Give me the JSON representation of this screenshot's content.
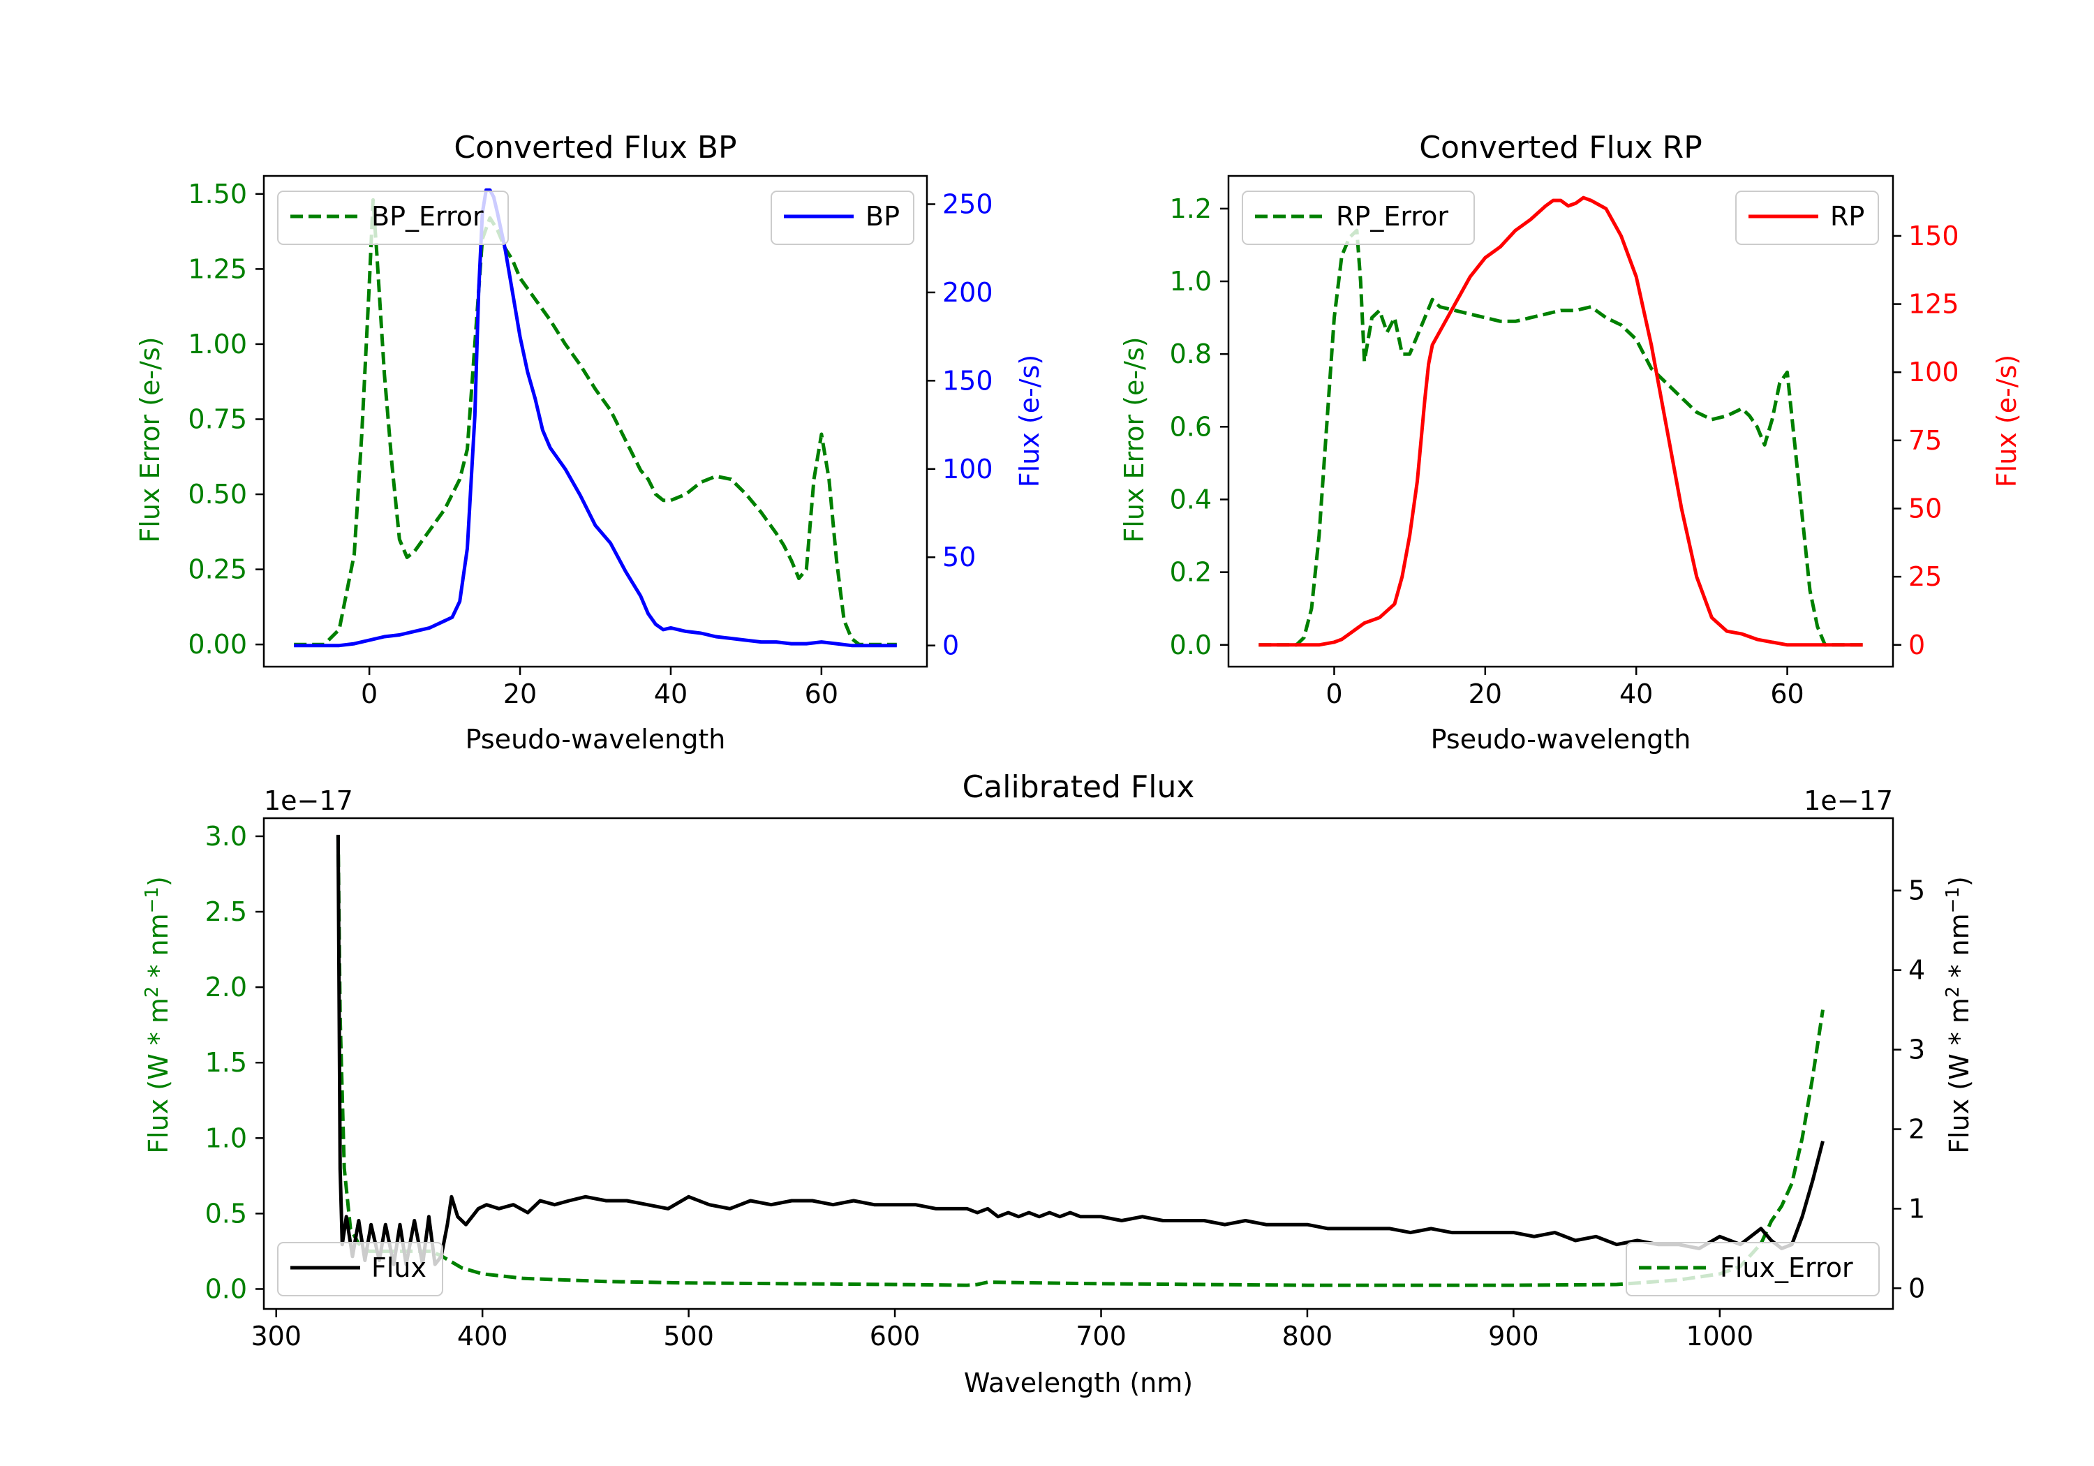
{
  "chart_data": [
    {
      "id": "bp",
      "type": "line",
      "title": "Converted Flux BP",
      "xlabel": "Pseudo-wavelength",
      "xlim": [
        -14,
        74
      ],
      "xticks": [
        0,
        20,
        40,
        60
      ],
      "left_axis": {
        "label": "Flux Error (e-/s)",
        "color": "#008000",
        "ylim": [
          -0.074,
          1.56
        ],
        "ticks": [
          0,
          0.25,
          0.5,
          0.75,
          1,
          1.25,
          1.5
        ],
        "tick_labels": [
          "0.00",
          "0.25",
          "0.50",
          "0.75",
          "1.00",
          "1.25",
          "1.50"
        ]
      },
      "right_axis": {
        "label": "Flux (e-/s)",
        "color": "#0000ff",
        "ylim": [
          -12,
          266
        ],
        "ticks": [
          0,
          50,
          100,
          150,
          200,
          250
        ],
        "tick_labels": [
          "0",
          "50",
          "100",
          "150",
          "200",
          "250"
        ]
      },
      "series": [
        {
          "name": "BP_Error",
          "axis": "left",
          "color": "#008000",
          "dash": true,
          "x": [
            -10,
            -6,
            -4,
            -2,
            -1,
            0,
            0.5,
            1,
            2,
            3,
            4,
            5,
            6,
            8,
            10,
            12,
            13,
            14,
            15,
            16,
            17,
            18,
            19,
            20,
            22,
            24,
            26,
            28,
            30,
            32,
            34,
            36,
            37,
            38,
            39,
            40,
            42,
            44,
            46,
            48,
            50,
            52,
            54,
            55,
            56,
            57,
            58,
            59,
            60,
            61,
            62,
            63,
            64,
            65,
            66,
            70
          ],
          "y": [
            0,
            0,
            0.05,
            0.3,
            0.7,
            1.2,
            1.48,
            1.3,
            0.9,
            0.6,
            0.35,
            0.29,
            0.31,
            0.38,
            0.45,
            0.55,
            0.65,
            1.0,
            1.35,
            1.42,
            1.38,
            1.32,
            1.28,
            1.22,
            1.15,
            1.08,
            1.0,
            0.93,
            0.85,
            0.78,
            0.68,
            0.58,
            0.55,
            0.5,
            0.48,
            0.48,
            0.5,
            0.54,
            0.56,
            0.55,
            0.5,
            0.44,
            0.37,
            0.33,
            0.28,
            0.22,
            0.25,
            0.55,
            0.7,
            0.55,
            0.28,
            0.08,
            0.02,
            0,
            0,
            0
          ]
        },
        {
          "name": "BP",
          "axis": "right",
          "color": "#0000ff",
          "dash": false,
          "x": [
            -10,
            -4,
            -2,
            0,
            2,
            4,
            6,
            8,
            10,
            11,
            12,
            13,
            14,
            14.5,
            15,
            15.5,
            16,
            16.5,
            17,
            18,
            19,
            20,
            21,
            22,
            23,
            24,
            26,
            28,
            30,
            32,
            34,
            36,
            37,
            38,
            39,
            40,
            42,
            44,
            46,
            48,
            50,
            52,
            54,
            56,
            58,
            60,
            62,
            64,
            66,
            70
          ],
          "y": [
            0,
            0,
            1,
            3,
            5,
            6,
            8,
            10,
            14,
            16,
            25,
            55,
            130,
            200,
            245,
            258,
            258,
            254,
            245,
            225,
            200,
            175,
            155,
            140,
            122,
            112,
            100,
            85,
            68,
            58,
            42,
            28,
            18,
            12,
            9,
            10,
            8,
            7,
            5,
            4,
            3,
            2,
            2,
            1,
            1,
            2,
            1,
            0,
            0,
            0
          ]
        }
      ],
      "legend": [
        {
          "label": "BP_Error",
          "position": "upper-left"
        },
        {
          "label": "BP",
          "position": "upper-right"
        }
      ]
    },
    {
      "id": "rp",
      "type": "line",
      "title": "Converted Flux RP",
      "xlabel": "Pseudo-wavelength",
      "xlim": [
        -14,
        74
      ],
      "xticks": [
        0,
        20,
        40,
        60
      ],
      "left_axis": {
        "label": "Flux Error (e-/s)",
        "color": "#008000",
        "ylim": [
          -0.06,
          1.29
        ],
        "ticks": [
          0,
          0.2,
          0.4,
          0.6,
          0.8,
          1,
          1.2
        ],
        "tick_labels": [
          "0.0",
          "0.2",
          "0.4",
          "0.6",
          "0.8",
          "1.0",
          "1.2"
        ]
      },
      "right_axis": {
        "label": "Flux (e-/s)",
        "color": "#ff0000",
        "ylim": [
          -8,
          172
        ],
        "ticks": [
          0,
          25,
          50,
          75,
          100,
          125,
          150
        ],
        "tick_labels": [
          "0",
          "25",
          "50",
          "75",
          "100",
          "125",
          "150"
        ]
      },
      "series": [
        {
          "name": "RP_Error",
          "axis": "left",
          "color": "#008000",
          "dash": true,
          "x": [
            -10,
            -5,
            -4,
            -3,
            -2,
            -1,
            0,
            1,
            2,
            3,
            3.5,
            4,
            5,
            6,
            7,
            8,
            9,
            10,
            12,
            13,
            14,
            16,
            18,
            20,
            22,
            24,
            26,
            28,
            30,
            32,
            34,
            36,
            38,
            40,
            42,
            44,
            46,
            48,
            50,
            52,
            54,
            55,
            56,
            57,
            58,
            59,
            60,
            61,
            62,
            63,
            64,
            65,
            70
          ],
          "y": [
            0,
            0,
            0.02,
            0.1,
            0.3,
            0.6,
            0.9,
            1.07,
            1.12,
            1.14,
            1.0,
            0.78,
            0.9,
            0.92,
            0.86,
            0.9,
            0.8,
            0.8,
            0.9,
            0.95,
            0.93,
            0.92,
            0.91,
            0.9,
            0.89,
            0.89,
            0.9,
            0.91,
            0.92,
            0.92,
            0.93,
            0.9,
            0.88,
            0.84,
            0.76,
            0.72,
            0.68,
            0.64,
            0.62,
            0.63,
            0.65,
            0.63,
            0.6,
            0.55,
            0.62,
            0.72,
            0.75,
            0.55,
            0.35,
            0.15,
            0.05,
            0,
            0
          ]
        },
        {
          "name": "RP",
          "axis": "right",
          "color": "#ff0000",
          "dash": false,
          "x": [
            -10,
            -4,
            -2,
            0,
            1,
            2,
            3,
            4,
            6,
            8,
            9,
            10,
            11,
            12,
            12.5,
            13,
            14,
            16,
            18,
            20,
            22,
            24,
            26,
            28,
            29,
            30,
            31,
            32,
            33,
            34,
            36,
            38,
            40,
            42,
            44,
            46,
            48,
            50,
            52,
            54,
            56,
            58,
            60,
            62,
            64,
            66,
            70
          ],
          "y": [
            0,
            0,
            0,
            1,
            2,
            4,
            6,
            8,
            10,
            15,
            25,
            40,
            60,
            90,
            103,
            110,
            115,
            125,
            135,
            142,
            146,
            152,
            156,
            161,
            163,
            163,
            161,
            162,
            164,
            163,
            160,
            150,
            135,
            110,
            80,
            50,
            25,
            10,
            5,
            4,
            2,
            1,
            0,
            0,
            0,
            0,
            0
          ]
        }
      ],
      "legend": [
        {
          "label": "RP_Error",
          "position": "upper-left"
        },
        {
          "label": "RP",
          "position": "upper-right"
        }
      ]
    },
    {
      "id": "cal",
      "type": "line",
      "title": "Calibrated Flux",
      "xlabel": "Wavelength (nm)",
      "xlim": [
        294,
        1084
      ],
      "xticks": [
        300,
        400,
        500,
        600,
        700,
        800,
        900,
        1000
      ],
      "left_axis": {
        "label_base": "Flux (W * m",
        "label_sup1": "2",
        "label_mid": " * nm",
        "label_sup2": "−1",
        "label_end": ")",
        "color": "#008000",
        "offset_text": "1e−17",
        "ylim": [
          -0.132,
          3.12
        ],
        "ticks": [
          0,
          0.5,
          1,
          1.5,
          2,
          2.5,
          3
        ],
        "tick_labels": [
          "0.0",
          "0.5",
          "1.0",
          "1.5",
          "2.0",
          "2.5",
          "3.0"
        ]
      },
      "right_axis": {
        "label_base": "Flux (W * m",
        "label_sup1": "2",
        "label_mid": " * nm",
        "label_sup2": "−1",
        "label_end": ")",
        "color": "#000000",
        "offset_text": "1e−17",
        "ylim": [
          -0.26,
          5.91
        ],
        "ticks": [
          0,
          1,
          2,
          3,
          4,
          5
        ],
        "tick_labels": [
          "0",
          "1",
          "2",
          "3",
          "4",
          "5"
        ]
      },
      "series": [
        {
          "name": "Flux_Error",
          "axis": "left",
          "color": "#008000",
          "dash": true,
          "x": [
            330,
            331,
            333,
            336,
            340,
            345,
            350,
            355,
            360,
            365,
            370,
            375,
            380,
            385,
            390,
            400,
            420,
            440,
            460,
            500,
            550,
            600,
            635,
            640,
            645,
            700,
            750,
            800,
            850,
            900,
            950,
            980,
            1000,
            1010,
            1020,
            1025,
            1030,
            1035,
            1040,
            1045,
            1050
          ],
          "y": [
            3.0,
            1.8,
            0.8,
            0.4,
            0.3,
            0.25,
            0.25,
            0.25,
            0.25,
            0.25,
            0.25,
            0.25,
            0.22,
            0.18,
            0.14,
            0.1,
            0.07,
            0.06,
            0.05,
            0.04,
            0.035,
            0.03,
            0.025,
            0.03,
            0.045,
            0.035,
            0.03,
            0.025,
            0.025,
            0.025,
            0.03,
            0.06,
            0.1,
            0.15,
            0.3,
            0.45,
            0.55,
            0.7,
            1.0,
            1.4,
            1.85
          ]
        },
        {
          "name": "Flux",
          "axis": "right",
          "color": "#000000",
          "dash": false,
          "x": [
            330,
            331,
            332,
            334,
            337,
            340,
            343,
            346,
            350,
            353,
            357,
            360,
            363,
            367,
            371,
            374,
            377,
            380,
            383,
            385,
            388,
            392,
            395,
            398,
            402,
            408,
            415,
            422,
            428,
            435,
            442,
            450,
            460,
            470,
            480,
            490,
            500,
            510,
            520,
            530,
            540,
            550,
            560,
            570,
            580,
            590,
            600,
            610,
            620,
            630,
            635,
            640,
            645,
            650,
            655,
            660,
            665,
            670,
            675,
            680,
            685,
            690,
            700,
            710,
            720,
            730,
            740,
            750,
            760,
            770,
            780,
            790,
            800,
            810,
            820,
            830,
            840,
            850,
            860,
            870,
            880,
            890,
            900,
            910,
            920,
            930,
            940,
            950,
            960,
            970,
            980,
            990,
            1000,
            1010,
            1020,
            1025,
            1030,
            1035,
            1040,
            1045,
            1050
          ],
          "y": [
            5.7,
            1.5,
            0.55,
            0.9,
            0.4,
            0.85,
            0.35,
            0.8,
            0.35,
            0.8,
            0.3,
            0.8,
            0.3,
            0.85,
            0.3,
            0.9,
            0.3,
            0.4,
            0.8,
            1.15,
            0.9,
            0.8,
            0.9,
            1.0,
            1.05,
            1.0,
            1.05,
            0.95,
            1.1,
            1.05,
            1.1,
            1.15,
            1.1,
            1.1,
            1.05,
            1.0,
            1.15,
            1.05,
            1.0,
            1.1,
            1.05,
            1.1,
            1.1,
            1.05,
            1.1,
            1.05,
            1.05,
            1.05,
            1.0,
            1.0,
            1.0,
            0.95,
            1.0,
            0.9,
            0.95,
            0.9,
            0.95,
            0.9,
            0.95,
            0.9,
            0.95,
            0.9,
            0.9,
            0.85,
            0.9,
            0.85,
            0.85,
            0.85,
            0.8,
            0.85,
            0.8,
            0.8,
            0.8,
            0.75,
            0.75,
            0.75,
            0.75,
            0.7,
            0.75,
            0.7,
            0.7,
            0.7,
            0.7,
            0.65,
            0.7,
            0.6,
            0.65,
            0.55,
            0.6,
            0.55,
            0.55,
            0.5,
            0.65,
            0.55,
            0.75,
            0.6,
            0.5,
            0.55,
            0.9,
            1.35,
            1.85
          ]
        }
      ],
      "legend": [
        {
          "label": "Flux",
          "position": "lower-left"
        },
        {
          "label": "Flux_Error",
          "position": "lower-right"
        }
      ]
    }
  ]
}
